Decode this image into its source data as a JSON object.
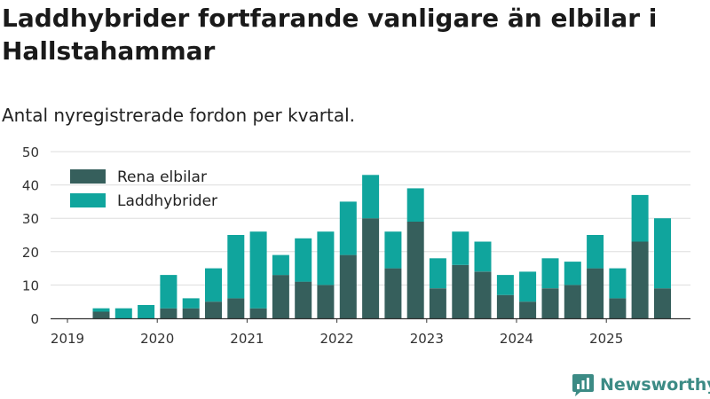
{
  "title": "Laddhybrider fortfarande vanligare än elbilar i Hallstahammar",
  "subtitle": "Antal nyregistrerade fordon per kvartal.",
  "brand": "Newsworthy",
  "colors": {
    "elbil": "#365f5c",
    "laddhybrid": "#10a59d",
    "grid": "#dddddd",
    "axis": "#333333",
    "brand": "#3c8b85"
  },
  "chart_data": {
    "type": "bar",
    "stacked": true,
    "title": "Laddhybrider fortfarande vanligare än elbilar i Hallstahammar",
    "subtitle": "Antal nyregistrerade fordon per kvartal.",
    "categories": [
      "2019 Q2",
      "2019 Q3",
      "2019 Q4",
      "2020 Q1",
      "2020 Q2",
      "2020 Q3",
      "2020 Q4",
      "2021 Q1",
      "2021 Q2",
      "2021 Q3",
      "2021 Q4",
      "2022 Q1",
      "2022 Q2",
      "2022 Q3",
      "2022 Q4",
      "2023 Q1",
      "2023 Q2",
      "2023 Q3",
      "2023 Q4",
      "2024 Q1",
      "2024 Q2",
      "2024 Q3",
      "2024 Q4",
      "2025 Q1",
      "2025 Q2",
      "2025 Q3"
    ],
    "series": [
      {
        "name": "Rena elbilar",
        "values": [
          2,
          0,
          0,
          3,
          3,
          5,
          6,
          3,
          13,
          11,
          10,
          19,
          30,
          15,
          29,
          9,
          16,
          14,
          7,
          5,
          9,
          10,
          15,
          6,
          23,
          9
        ]
      },
      {
        "name": "Laddhybrider",
        "values": [
          1,
          3,
          4,
          10,
          3,
          10,
          19,
          23,
          6,
          13,
          16,
          16,
          13,
          11,
          10,
          9,
          10,
          9,
          6,
          9,
          9,
          7,
          10,
          9,
          14,
          21
        ]
      }
    ],
    "x_ticks": [
      "2019",
      "2020",
      "2021",
      "2022",
      "2023",
      "2024",
      "2025"
    ],
    "y_ticks": [
      0,
      10,
      20,
      30,
      40,
      50
    ],
    "ylim": [
      0,
      50
    ],
    "xlabel": "",
    "ylabel": "",
    "legend_position": "top-left"
  }
}
